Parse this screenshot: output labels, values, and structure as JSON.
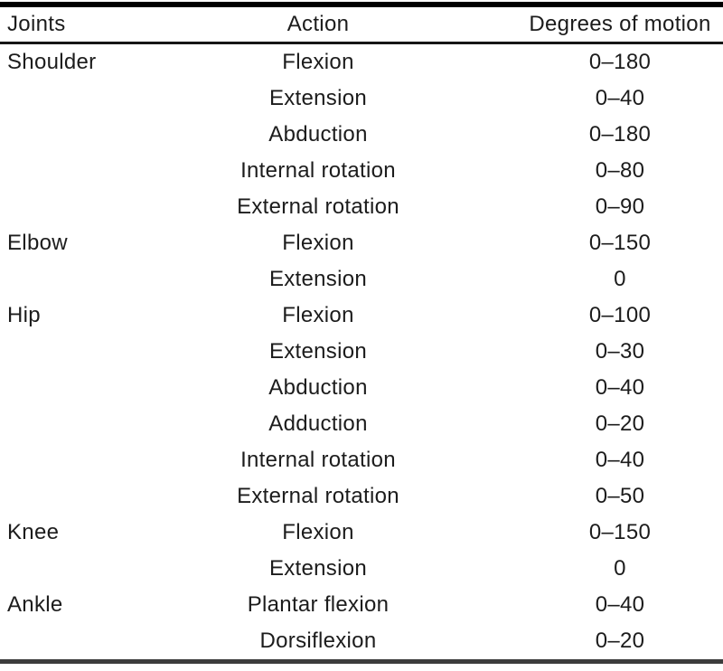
{
  "table": {
    "columns": {
      "joints": "Joints",
      "action": "Action",
      "degrees": "Degrees of motion"
    },
    "rows": [
      {
        "joint": "Shoulder",
        "action": "Flexion",
        "degrees": "0–180"
      },
      {
        "joint": "",
        "action": "Extension",
        "degrees": "0–40"
      },
      {
        "joint": "",
        "action": "Abduction",
        "degrees": "0–180"
      },
      {
        "joint": "",
        "action": "Internal rotation",
        "degrees": "0–80"
      },
      {
        "joint": "",
        "action": "External rotation",
        "degrees": "0–90"
      },
      {
        "joint": "Elbow",
        "action": "Flexion",
        "degrees": "0–150"
      },
      {
        "joint": "",
        "action": "Extension",
        "degrees": "0"
      },
      {
        "joint": "Hip",
        "action": "Flexion",
        "degrees": "0–100"
      },
      {
        "joint": "",
        "action": "Extension",
        "degrees": "0–30"
      },
      {
        "joint": "",
        "action": "Abduction",
        "degrees": "0–40"
      },
      {
        "joint": "",
        "action": "Adduction",
        "degrees": "0–20"
      },
      {
        "joint": "",
        "action": "Internal rotation",
        "degrees": "0–40"
      },
      {
        "joint": "",
        "action": "External rotation",
        "degrees": "0–50"
      },
      {
        "joint": "Knee",
        "action": "Flexion",
        "degrees": "0–150"
      },
      {
        "joint": "",
        "action": "Extension",
        "degrees": "0"
      },
      {
        "joint": "Ankle",
        "action": "Plantar flexion",
        "degrees": "0–40"
      },
      {
        "joint": "",
        "action": "Dorsiflexion",
        "degrees": "0–20"
      }
    ],
    "colors": {
      "text": "#1c1c1c",
      "background": "#ffffff",
      "top_rule": "#000000",
      "header_rule": "#161616",
      "bottom_rule": "#3c3c3c"
    }
  }
}
